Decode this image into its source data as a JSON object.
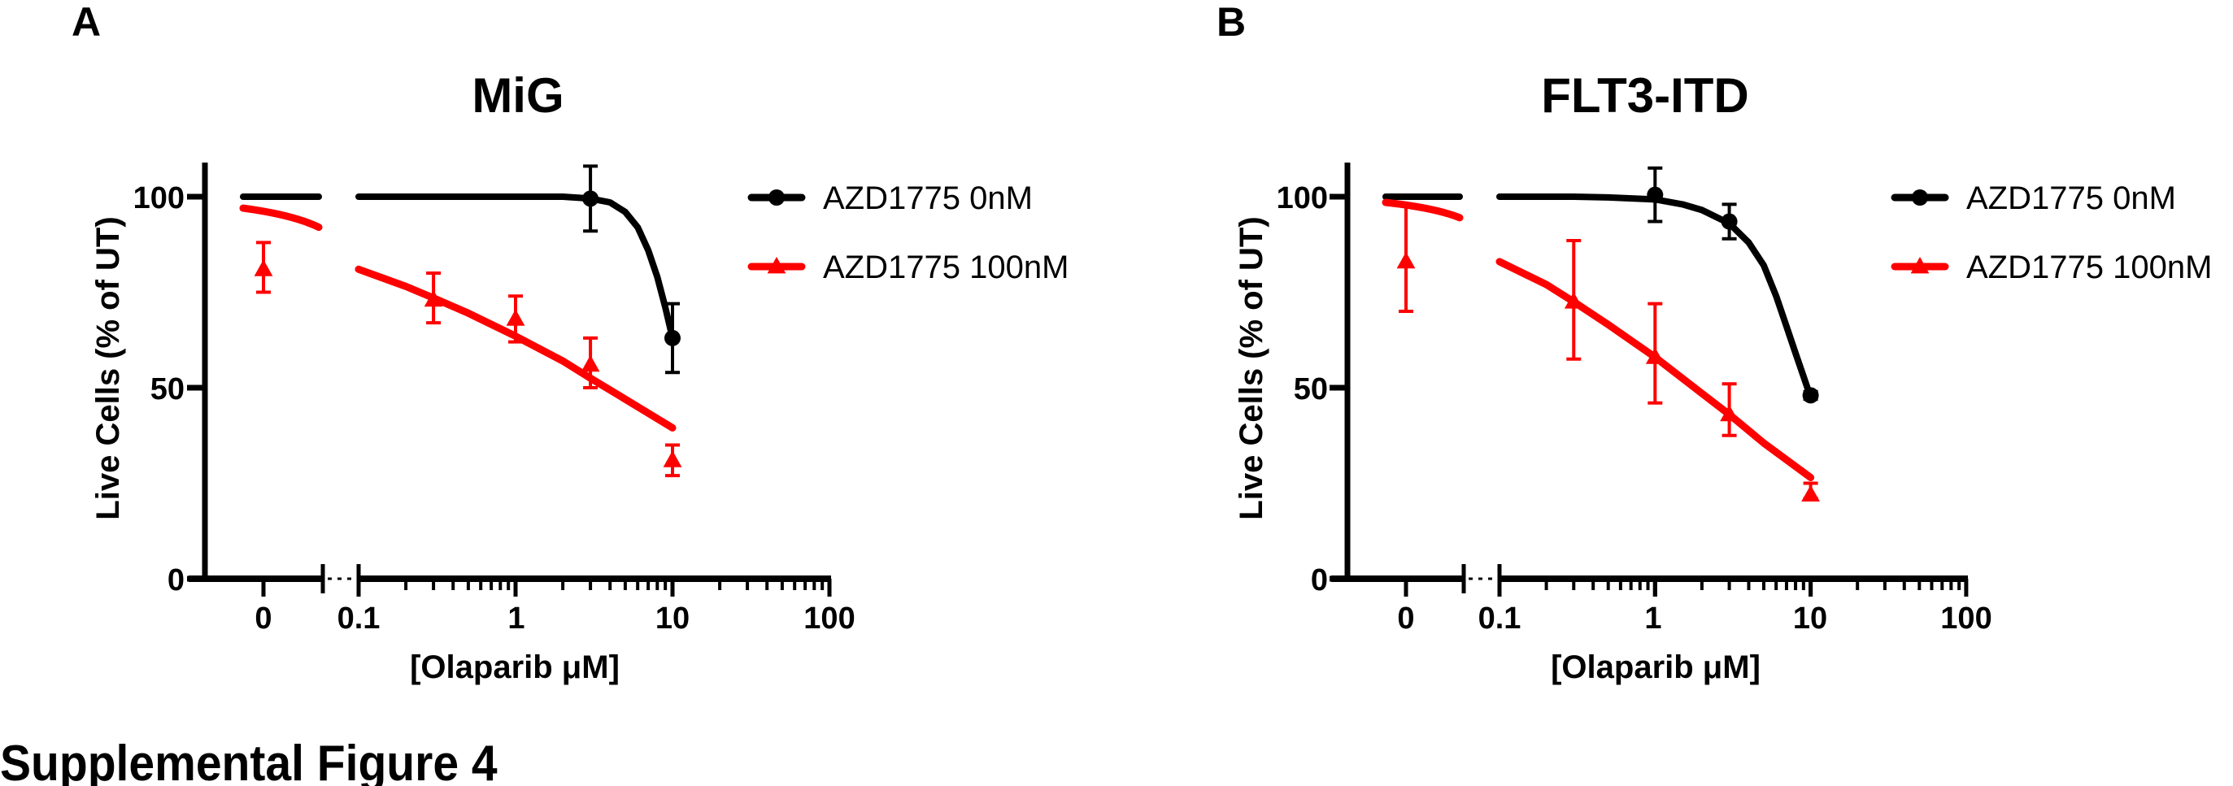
{
  "figure": {
    "caption": "Supplemental Figure 4"
  },
  "colors": {
    "series_0nM": "#000000",
    "series_100nM": "#ff0000",
    "axis": "#000000",
    "background": "#ffffff"
  },
  "chart_data": [
    {
      "panel": "A",
      "type": "line",
      "title": "MiG",
      "xlabel": "[Olaparib μM]",
      "ylabel": "Live Cells (% of  UT)",
      "x_scale": "log with broken axis (0 plotted separately)",
      "x_ticks": [
        "0",
        "0.1",
        "1",
        "10",
        "100"
      ],
      "y_ticks": [
        "0",
        "50",
        "100"
      ],
      "ylim": [
        0,
        110
      ],
      "xlim": [
        0.1,
        100
      ],
      "grid": false,
      "legend_position": "right",
      "series": [
        {
          "name": "AZD1775 0nM",
          "color": "#000000",
          "marker": "circle",
          "points": [
            {
              "x": 3,
              "y": 99.5,
              "err_low": 91,
              "err_high": 108
            },
            {
              "x": 10,
              "y": 63,
              "err_low": 54,
              "err_high": 72
            }
          ],
          "zero_segment": [
            100,
            100
          ],
          "fit_curve": [
            [
              0.1,
              100
            ],
            [
              0.3,
              100
            ],
            [
              1,
              100
            ],
            [
              2,
              100
            ],
            [
              3,
              99.5
            ],
            [
              4,
              98.5
            ],
            [
              5,
              96
            ],
            [
              6,
              92
            ],
            [
              7,
              86
            ],
            [
              8,
              79
            ],
            [
              9,
              71
            ],
            [
              10,
              63
            ]
          ]
        },
        {
          "name": "AZD1775 100nM",
          "color": "#ff0000",
          "marker": "triangle",
          "points": [
            {
              "x": 0,
              "y": 81,
              "err_low": 75,
              "err_high": 88
            },
            {
              "x": 0.3,
              "y": 73,
              "err_low": 67,
              "err_high": 80
            },
            {
              "x": 1,
              "y": 68,
              "err_low": 62,
              "err_high": 74
            },
            {
              "x": 3,
              "y": 56,
              "err_low": 50,
              "err_high": 63
            },
            {
              "x": 10,
              "y": 31,
              "err_low": 27,
              "err_high": 35
            }
          ],
          "zero_segment": [
            97,
            92
          ],
          "fit_curve": [
            [
              0.1,
              81
            ],
            [
              0.2,
              76.5
            ],
            [
              0.3,
              73.5
            ],
            [
              0.5,
              69.5
            ],
            [
              1,
              63.5
            ],
            [
              2,
              57
            ],
            [
              3,
              52.5
            ],
            [
              5,
              47
            ],
            [
              10,
              39.5
            ]
          ]
        }
      ]
    },
    {
      "panel": "B",
      "type": "line",
      "title": "FLT3-ITD",
      "xlabel": "[Olaparib μM]",
      "ylabel": "Live Cells (% of  UT)",
      "x_scale": "log with broken axis (0 plotted separately)",
      "x_ticks": [
        "0",
        "0.1",
        "1",
        "10",
        "100"
      ],
      "y_ticks": [
        "0",
        "50",
        "100"
      ],
      "ylim": [
        0,
        110
      ],
      "xlim": [
        0.1,
        100
      ],
      "grid": false,
      "legend_position": "right",
      "series": [
        {
          "name": "AZD1775 0nM",
          "color": "#000000",
          "marker": "circle",
          "points": [
            {
              "x": 1,
              "y": 100.5,
              "err_low": 93.5,
              "err_high": 107.5
            },
            {
              "x": 3,
              "y": 93.5,
              "err_low": 89,
              "err_high": 98
            },
            {
              "x": 10,
              "y": 48,
              "err_low": 47,
              "err_high": 49
            }
          ],
          "zero_segment": [
            100,
            100
          ],
          "fit_curve": [
            [
              0.1,
              100
            ],
            [
              0.3,
              100
            ],
            [
              0.5,
              99.8
            ],
            [
              1,
              99.3
            ],
            [
              1.5,
              98
            ],
            [
              2,
              96.5
            ],
            [
              3,
              93
            ],
            [
              4,
              88
            ],
            [
              5,
              82
            ],
            [
              6,
              74
            ],
            [
              7,
              66
            ],
            [
              8,
              59
            ],
            [
              9,
              53
            ],
            [
              10,
              47.5
            ]
          ]
        },
        {
          "name": "AZD1775 100nM",
          "color": "#ff0000",
          "marker": "triangle",
          "points": [
            {
              "x": 0,
              "y": 83,
              "err_low": 70,
              "err_high": 98
            },
            {
              "x": 0.3,
              "y": 72.5,
              "err_low": 57.5,
              "err_high": 88.5
            },
            {
              "x": 1,
              "y": 58,
              "err_low": 46,
              "err_high": 72
            },
            {
              "x": 3,
              "y": 43,
              "err_low": 37.5,
              "err_high": 51
            },
            {
              "x": 10,
              "y": 22,
              "err_low": 21,
              "err_high": 25
            }
          ],
          "zero_segment": [
            98.5,
            94.5
          ],
          "fit_curve": [
            [
              0.1,
              83
            ],
            [
              0.2,
              77
            ],
            [
              0.3,
              72.5
            ],
            [
              0.5,
              66.5
            ],
            [
              1,
              58
            ],
            [
              2,
              48.5
            ],
            [
              3,
              43
            ],
            [
              5,
              35.5
            ],
            [
              10,
              26.5
            ]
          ]
        }
      ]
    }
  ],
  "panels": [
    {
      "letter": "A",
      "title": "MiG",
      "ylabel": "Live Cells (% of  UT)",
      "xlabel": "[Olaparib μM]",
      "x_tick_labels": [
        "0",
        "0.1",
        "1",
        "10",
        "100"
      ],
      "y_tick_labels": [
        "0",
        "50",
        "100"
      ],
      "legend": [
        "AZD1775 0nM",
        "AZD1775 100nM"
      ]
    },
    {
      "letter": "B",
      "title": "FLT3-ITD",
      "ylabel": "Live Cells (% of  UT)",
      "xlabel": "[Olaparib μM]",
      "x_tick_labels": [
        "0",
        "0.1",
        "1",
        "10",
        "100"
      ],
      "y_tick_labels": [
        "0",
        "50",
        "100"
      ],
      "legend": [
        "AZD1775 0nM",
        "AZD1775 100nM"
      ]
    }
  ]
}
